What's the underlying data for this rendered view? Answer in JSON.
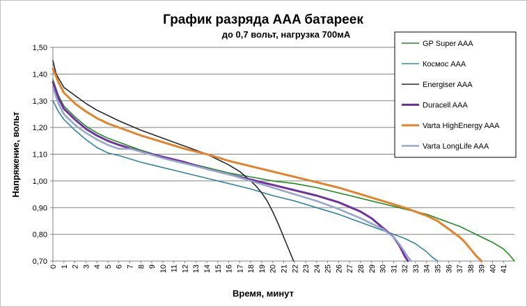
{
  "chart_data": {
    "type": "line",
    "title": "График разряда AAA батареек",
    "subtitle": "до 0,7 вольт, нагрузка 700мА",
    "xlabel": "Время, минут",
    "ylabel": "Напряжение, вольт",
    "xlim": [
      0,
      42
    ],
    "ylim": [
      0.7,
      1.5
    ],
    "y_ticks": [
      "0,70",
      "0,80",
      "0,90",
      "1,00",
      "1,10",
      "1,20",
      "1,30",
      "1,40",
      "1,50"
    ],
    "x_ticks": [
      "0",
      "1",
      "2",
      "3",
      "4",
      "5",
      "6",
      "7",
      "8",
      "9",
      "10",
      "11",
      "12",
      "13",
      "14",
      "15",
      "16",
      "17",
      "18",
      "19",
      "20",
      "21",
      "22",
      "23",
      "24",
      "25",
      "26",
      "27",
      "28",
      "29",
      "30",
      "31",
      "32",
      "33",
      "34",
      "35",
      "36",
      "37",
      "38",
      "39",
      "40",
      "41"
    ],
    "grid": "horizontal",
    "legend_position": "right",
    "series": [
      {
        "name": "GP Super AAA",
        "color": "#1e8c1e",
        "x": [
          0,
          0.5,
          1,
          2,
          3,
          4,
          5,
          6,
          7,
          8,
          10,
          12,
          14,
          16,
          18,
          20,
          22,
          24,
          26,
          28,
          30,
          32,
          34,
          36,
          37,
          38,
          39,
          40,
          41,
          41.5,
          42
        ],
        "y": [
          1.38,
          1.32,
          1.28,
          1.24,
          1.205,
          1.18,
          1.16,
          1.145,
          1.13,
          1.115,
          1.09,
          1.07,
          1.05,
          1.03,
          1.015,
          1.0,
          0.99,
          0.975,
          0.955,
          0.935,
          0.915,
          0.895,
          0.875,
          0.845,
          0.83,
          0.81,
          0.79,
          0.77,
          0.745,
          0.725,
          0.7
        ]
      },
      {
        "name": "Космос AAA",
        "color": "#31859c",
        "x": [
          0,
          0.5,
          1,
          2,
          3,
          4,
          5,
          6,
          8,
          10,
          12,
          14,
          16,
          18,
          20,
          22,
          24,
          26,
          28,
          30,
          31,
          32,
          33,
          34,
          34.5,
          35
        ],
        "y": [
          1.3,
          1.26,
          1.23,
          1.19,
          1.155,
          1.125,
          1.105,
          1.095,
          1.07,
          1.05,
          1.03,
          1.01,
          0.99,
          0.97,
          0.945,
          0.925,
          0.9,
          0.875,
          0.845,
          0.815,
          0.8,
          0.785,
          0.765,
          0.735,
          0.715,
          0.7
        ]
      },
      {
        "name": "Energiser AAA",
        "color": "#262626",
        "x": [
          0,
          0.3,
          1,
          2,
          3,
          4,
          6,
          8,
          10,
          12,
          14,
          16,
          17,
          18,
          18.5,
          19,
          19.5,
          20,
          20.5,
          21,
          21.3,
          21.6,
          21.9
        ],
        "y": [
          1.45,
          1.4,
          1.35,
          1.32,
          1.29,
          1.265,
          1.225,
          1.19,
          1.16,
          1.13,
          1.1,
          1.06,
          1.035,
          1.0,
          0.98,
          0.955,
          0.925,
          0.885,
          0.84,
          0.79,
          0.76,
          0.73,
          0.7
        ]
      },
      {
        "name": "Duracell AAA",
        "color": "#7030a0",
        "x": [
          0,
          0.5,
          1,
          2,
          3,
          4,
          5,
          6,
          8,
          10,
          12,
          14,
          16,
          18,
          20,
          22,
          24,
          26,
          28,
          29,
          30,
          31,
          31.5,
          32,
          32.3
        ],
        "y": [
          1.37,
          1.31,
          1.27,
          1.23,
          1.195,
          1.17,
          1.15,
          1.135,
          1.11,
          1.09,
          1.07,
          1.045,
          1.025,
          1.005,
          0.985,
          0.965,
          0.945,
          0.92,
          0.885,
          0.86,
          0.825,
          0.79,
          0.76,
          0.72,
          0.7
        ]
      },
      {
        "name": "Varta HighEnergy AAA",
        "color": "#e3822a",
        "x": [
          0,
          0.5,
          1,
          2,
          3,
          4,
          5,
          6,
          8,
          10,
          12,
          14,
          16,
          18,
          20,
          22,
          24,
          26,
          28,
          30,
          32,
          34,
          35,
          36,
          37,
          37.5,
          38,
          38.5,
          39
        ],
        "y": [
          1.42,
          1.37,
          1.33,
          1.29,
          1.26,
          1.235,
          1.215,
          1.2,
          1.17,
          1.145,
          1.12,
          1.1,
          1.075,
          1.055,
          1.035,
          1.015,
          0.995,
          0.975,
          0.95,
          0.925,
          0.9,
          0.87,
          0.85,
          0.82,
          0.79,
          0.77,
          0.745,
          0.72,
          0.7
        ]
      },
      {
        "name": "Varta LongLife AAA",
        "color": "#95a7ca",
        "x": [
          0,
          0.5,
          1,
          2,
          3,
          4,
          5,
          6,
          7,
          8,
          10,
          12,
          14,
          16,
          18,
          20,
          22,
          24,
          26,
          28,
          30,
          31,
          31.5,
          32,
          32.3,
          32.6
        ],
        "y": [
          1.35,
          1.29,
          1.25,
          1.21,
          1.18,
          1.155,
          1.135,
          1.12,
          1.12,
          1.11,
          1.085,
          1.065,
          1.045,
          1.025,
          1.0,
          0.975,
          0.95,
          0.925,
          0.895,
          0.86,
          0.82,
          0.79,
          0.765,
          0.735,
          0.715,
          0.7
        ]
      }
    ]
  }
}
